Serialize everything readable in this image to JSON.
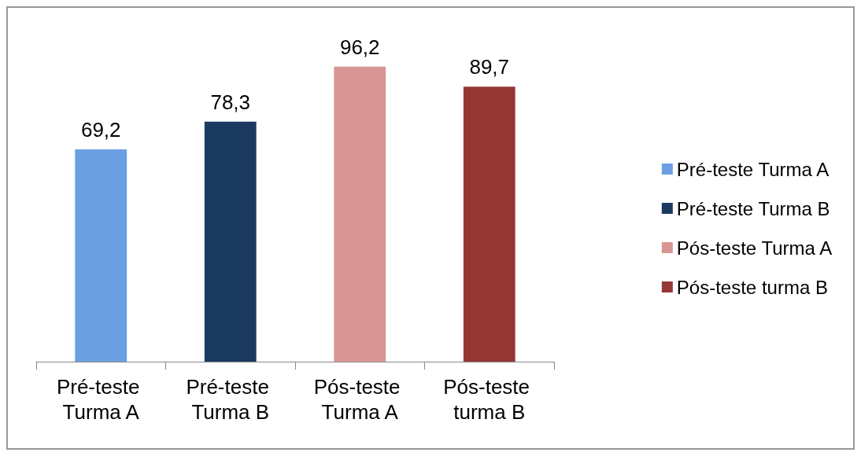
{
  "chart_data": {
    "type": "bar",
    "categories": [
      "Pré-teste Turma A",
      "Pré-teste Turma B",
      "Pós-teste Turma A",
      "Pós-teste turma B"
    ],
    "stacked": true,
    "series": [
      {
        "name": "Pré-teste Turma A",
        "color": "#6a9fe2",
        "values": [
          69.2,
          null,
          null,
          null
        ],
        "value_labels": [
          "69,2",
          null,
          null,
          null
        ]
      },
      {
        "name": "Pré-teste Turma B",
        "color": "#1b3a5f",
        "values": [
          null,
          78.3,
          null,
          null
        ],
        "value_labels": [
          null,
          "78,3",
          null,
          null
        ]
      },
      {
        "name": "Pós-teste Turma A",
        "color": "#d99694",
        "values": [
          null,
          null,
          96.2,
          null
        ],
        "value_labels": [
          null,
          null,
          "96,2",
          null
        ]
      },
      {
        "name": "Pós-teste turma B",
        "color": "#953735",
        "values": [
          null,
          null,
          null,
          89.7
        ],
        "value_labels": [
          null,
          null,
          null,
          "89,7"
        ]
      }
    ],
    "legend": "right"
  }
}
